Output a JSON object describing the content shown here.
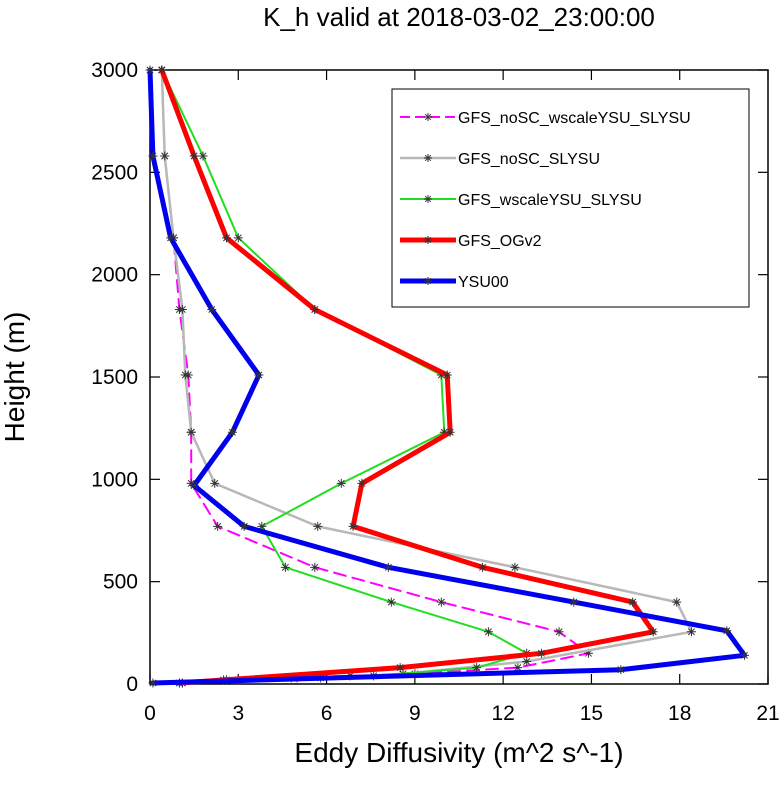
{
  "chart_data": {
    "type": "line",
    "title": "K_h valid at 2018-03-02_23:00:00",
    "xlabel": "Eddy Diffusivity (m^2 s^-1)",
    "ylabel": "Height (m)",
    "xlim": [
      0,
      21
    ],
    "ylim": [
      0,
      3000
    ],
    "xticks": [
      0,
      3,
      6,
      9,
      12,
      15,
      18,
      21
    ],
    "yticks": [
      0,
      500,
      1000,
      1500,
      2000,
      2500,
      3000
    ],
    "legend_position": "top-right",
    "marker": "asterisk",
    "series": [
      {
        "name": "GFS_noSC_wscaleYSU_SLYSU",
        "color": "#ff00ff",
        "dashed": true,
        "width": 2,
        "points": [
          [
            1.1,
            5
          ],
          [
            2.6,
            20
          ],
          [
            4.8,
            30
          ],
          [
            6.8,
            40
          ],
          [
            9,
            50
          ],
          [
            12.5,
            80
          ],
          [
            14.9,
            150
          ],
          [
            13.9,
            255
          ],
          [
            9.9,
            400
          ],
          [
            5.6,
            570
          ],
          [
            2.3,
            770
          ],
          [
            1.4,
            980
          ],
          [
            1.4,
            1230
          ],
          [
            1.3,
            1510
          ],
          [
            1.0,
            1830
          ],
          [
            0.8,
            2180
          ],
          [
            0.5,
            2580
          ],
          [
            0.4,
            3000
          ]
        ]
      },
      {
        "name": "GFS_noSC_SLYSU",
        "color": "#b8b8b8",
        "dashed": false,
        "width": 2.5,
        "points": [
          [
            1.1,
            5
          ],
          [
            3.0,
            20
          ],
          [
            5.8,
            30
          ],
          [
            8.6,
            50
          ],
          [
            12.8,
            110
          ],
          [
            18.4,
            255
          ],
          [
            17.9,
            400
          ],
          [
            12.4,
            570
          ],
          [
            5.7,
            770
          ],
          [
            2.2,
            980
          ],
          [
            1.4,
            1230
          ],
          [
            1.2,
            1510
          ],
          [
            1.1,
            1830
          ],
          [
            0.8,
            2180
          ],
          [
            0.5,
            2580
          ],
          [
            0.4,
            3000
          ]
        ]
      },
      {
        "name": "GFS_wscaleYSU_SLYSU",
        "color": "#22dd22",
        "dashed": false,
        "width": 2,
        "points": [
          [
            1.0,
            5
          ],
          [
            2.5,
            20
          ],
          [
            5.0,
            30
          ],
          [
            7.6,
            40
          ],
          [
            11.1,
            80
          ],
          [
            12.8,
            150
          ],
          [
            11.5,
            255
          ],
          [
            8.2,
            400
          ],
          [
            4.6,
            570
          ],
          [
            3.8,
            770
          ],
          [
            6.5,
            980
          ],
          [
            10.0,
            1230
          ],
          [
            9.9,
            1510
          ],
          [
            5.6,
            1830
          ],
          [
            3.0,
            2180
          ],
          [
            1.8,
            2580
          ],
          [
            0.4,
            3000
          ]
        ]
      },
      {
        "name": "GFS_OGv2",
        "color": "#ff0000",
        "dashed": false,
        "width": 5,
        "points": [
          [
            1.0,
            5
          ],
          [
            8.5,
            80
          ],
          [
            13.3,
            150
          ],
          [
            17.1,
            255
          ],
          [
            16.4,
            400
          ],
          [
            11.3,
            570
          ],
          [
            6.9,
            770
          ],
          [
            7.2,
            980
          ],
          [
            10.2,
            1230
          ],
          [
            10.1,
            1510
          ],
          [
            5.6,
            1830
          ],
          [
            2.6,
            2180
          ],
          [
            1.5,
            2580
          ],
          [
            0.4,
            3000
          ]
        ]
      },
      {
        "name": "YSU00",
        "color": "#0000ee",
        "dashed": false,
        "width": 5,
        "points": [
          [
            0.1,
            5
          ],
          [
            16.0,
            70
          ],
          [
            20.2,
            140
          ],
          [
            19.6,
            260
          ],
          [
            14.4,
            400
          ],
          [
            8.1,
            570
          ],
          [
            3.2,
            770
          ],
          [
            1.5,
            970
          ],
          [
            2.8,
            1230
          ],
          [
            3.7,
            1510
          ],
          [
            2.1,
            1830
          ],
          [
            0.7,
            2180
          ],
          [
            0.1,
            2580
          ],
          [
            0.0,
            3000
          ]
        ]
      }
    ]
  }
}
